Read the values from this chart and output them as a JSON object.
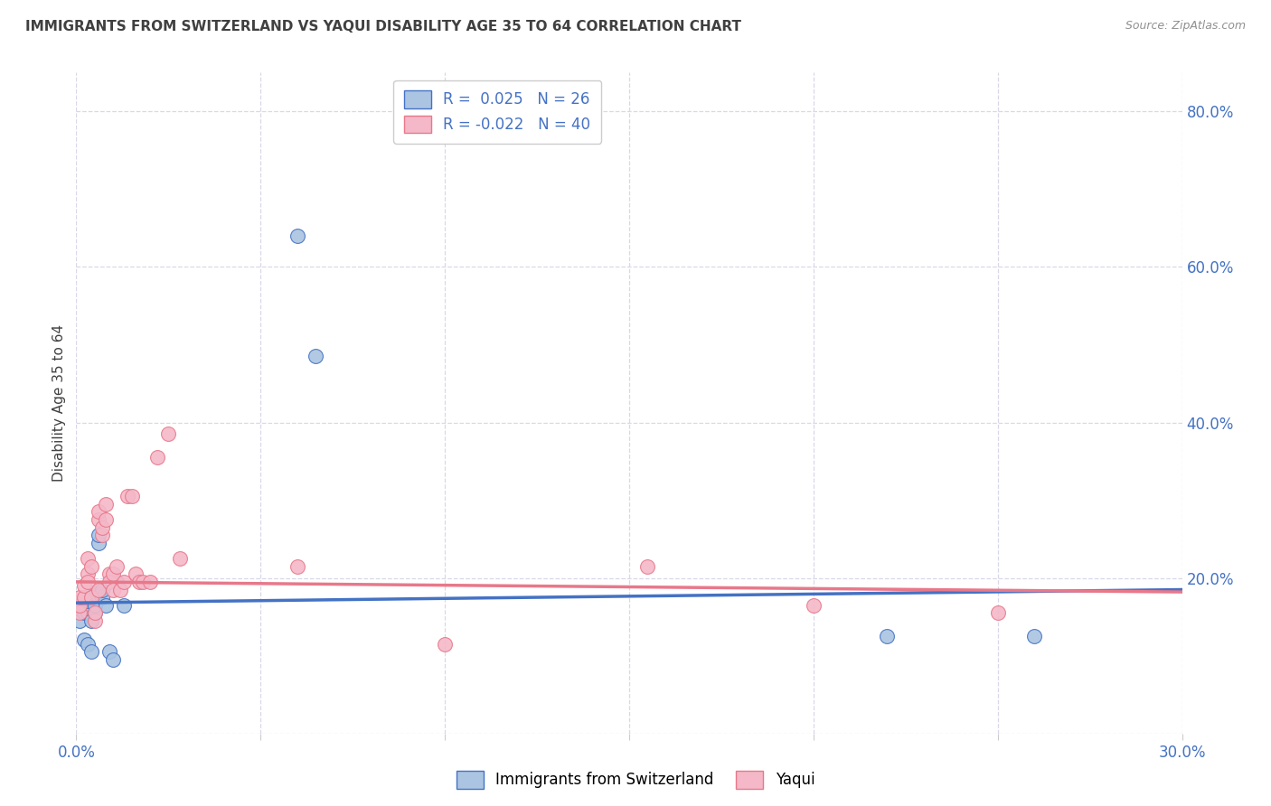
{
  "title": "IMMIGRANTS FROM SWITZERLAND VS YAQUI DISABILITY AGE 35 TO 64 CORRELATION CHART",
  "source": "Source: ZipAtlas.com",
  "ylabel": "Disability Age 35 to 64",
  "xlim": [
    0.0,
    0.3
  ],
  "ylim": [
    0.0,
    0.85
  ],
  "y_ticks": [
    0.0,
    0.2,
    0.4,
    0.6,
    0.8
  ],
  "y_tick_labels": [
    "",
    "20.0%",
    "40.0%",
    "60.0%",
    "80.0%"
  ],
  "x_ticks": [
    0.0,
    0.05,
    0.1,
    0.15,
    0.2,
    0.25,
    0.3
  ],
  "x_tick_labels": [
    "0.0%",
    "",
    "",
    "",
    "",
    "",
    "30.0%"
  ],
  "legend_blue_label": "Immigrants from Switzerland",
  "legend_pink_label": "Yaqui",
  "blue_R": "0.025",
  "blue_N": 26,
  "pink_R": "-0.022",
  "pink_N": 40,
  "blue_scatter_x": [
    0.001,
    0.001,
    0.002,
    0.002,
    0.002,
    0.003,
    0.003,
    0.003,
    0.004,
    0.004,
    0.005,
    0.005,
    0.005,
    0.006,
    0.006,
    0.007,
    0.007,
    0.008,
    0.009,
    0.01,
    0.011,
    0.013,
    0.06,
    0.065,
    0.22,
    0.26
  ],
  "blue_scatter_y": [
    0.145,
    0.16,
    0.155,
    0.165,
    0.12,
    0.155,
    0.17,
    0.115,
    0.145,
    0.105,
    0.155,
    0.165,
    0.18,
    0.245,
    0.255,
    0.175,
    0.185,
    0.165,
    0.105,
    0.095,
    0.195,
    0.165,
    0.64,
    0.485,
    0.125,
    0.125
  ],
  "pink_scatter_x": [
    0.001,
    0.001,
    0.001,
    0.002,
    0.002,
    0.003,
    0.003,
    0.003,
    0.004,
    0.004,
    0.005,
    0.005,
    0.006,
    0.006,
    0.006,
    0.007,
    0.007,
    0.008,
    0.008,
    0.009,
    0.009,
    0.01,
    0.01,
    0.011,
    0.012,
    0.013,
    0.014,
    0.015,
    0.016,
    0.017,
    0.018,
    0.02,
    0.022,
    0.025,
    0.028,
    0.06,
    0.1,
    0.155,
    0.2,
    0.25
  ],
  "pink_scatter_y": [
    0.155,
    0.165,
    0.175,
    0.175,
    0.19,
    0.205,
    0.225,
    0.195,
    0.175,
    0.215,
    0.145,
    0.155,
    0.185,
    0.275,
    0.285,
    0.255,
    0.265,
    0.295,
    0.275,
    0.205,
    0.195,
    0.185,
    0.205,
    0.215,
    0.185,
    0.195,
    0.305,
    0.305,
    0.205,
    0.195,
    0.195,
    0.195,
    0.355,
    0.385,
    0.225,
    0.215,
    0.115,
    0.215,
    0.165,
    0.155
  ],
  "blue_line_x": [
    0.0,
    0.3
  ],
  "blue_line_y_start": 0.168,
  "blue_line_y_end": 0.185,
  "pink_line_x": [
    0.0,
    0.3
  ],
  "pink_line_y_start": 0.195,
  "pink_line_y_end": 0.182,
  "blue_color": "#aac4e2",
  "pink_color": "#f4b8c8",
  "blue_line_color": "#4472c4",
  "pink_line_color": "#e8788a",
  "background_color": "#ffffff",
  "grid_color": "#d8d8e8",
  "title_color": "#404040",
  "axis_tick_color": "#4472c4",
  "source_color": "#909090"
}
